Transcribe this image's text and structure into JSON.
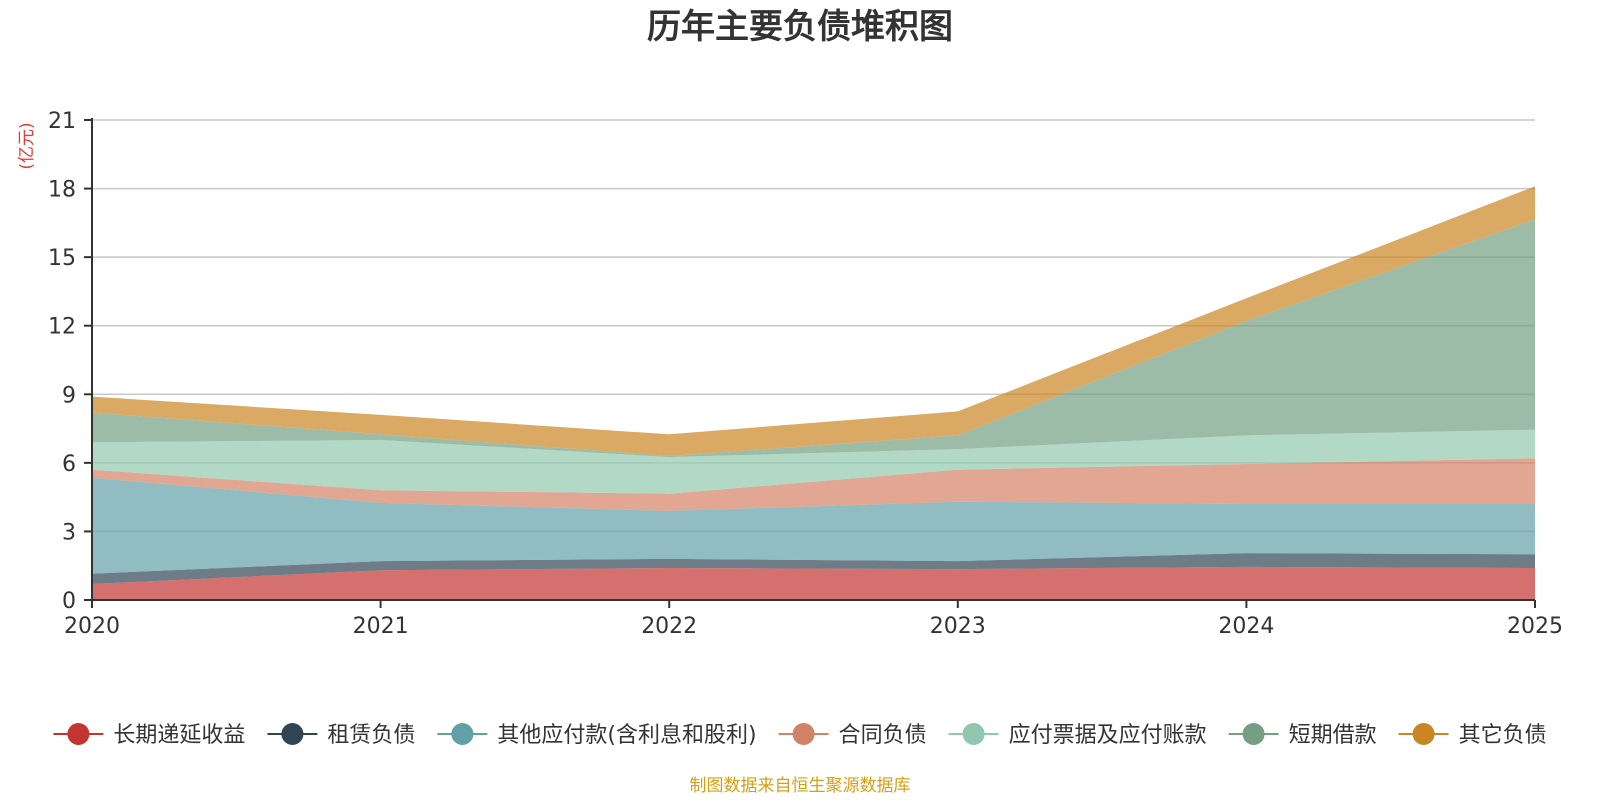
{
  "colors": {
    "series": [
      "#c23531",
      "#2f4554",
      "#61a0a8",
      "#d48265",
      "#91c7ae",
      "#749f83",
      "#ca8622"
    ],
    "source": "#d4a017",
    "unit": "#e53935"
  },
  "chart_data": {
    "type": "area",
    "title": "历年主要负债堆积图",
    "ylabel": "(亿元)",
    "xlabel": "",
    "x": [
      "2020",
      "2021",
      "2022",
      "2023",
      "2024",
      "2025"
    ],
    "ylim": [
      0,
      21
    ],
    "yticks": [
      "0",
      "3",
      "6",
      "9",
      "12",
      "15",
      "18",
      "21"
    ],
    "stacked": true,
    "legend_position": "bottom",
    "series": [
      {
        "name": "长期递延收益",
        "values": [
          0.7,
          1.3,
          1.4,
          1.35,
          1.45,
          1.4
        ]
      },
      {
        "name": "租赁负债",
        "values": [
          0.45,
          0.4,
          0.4,
          0.35,
          0.6,
          0.6
        ]
      },
      {
        "name": "其他应付款(含利息和股利)",
        "values": [
          4.2,
          2.55,
          2.1,
          2.6,
          2.15,
          2.2
        ]
      },
      {
        "name": "合同负债",
        "values": [
          0.35,
          0.55,
          0.75,
          1.4,
          1.75,
          2.0
        ]
      },
      {
        "name": "应付票据及应付账款",
        "values": [
          1.2,
          2.2,
          1.6,
          0.9,
          1.25,
          1.25
        ]
      },
      {
        "name": "短期借款",
        "values": [
          1.3,
          0.25,
          0.05,
          0.6,
          5.0,
          9.2
        ]
      },
      {
        "name": "其它负债",
        "values": [
          0.7,
          0.85,
          0.95,
          1.05,
          1.0,
          1.45
        ]
      }
    ]
  },
  "footer": {
    "source_text": "制图数据来自恒生聚源数据库"
  }
}
